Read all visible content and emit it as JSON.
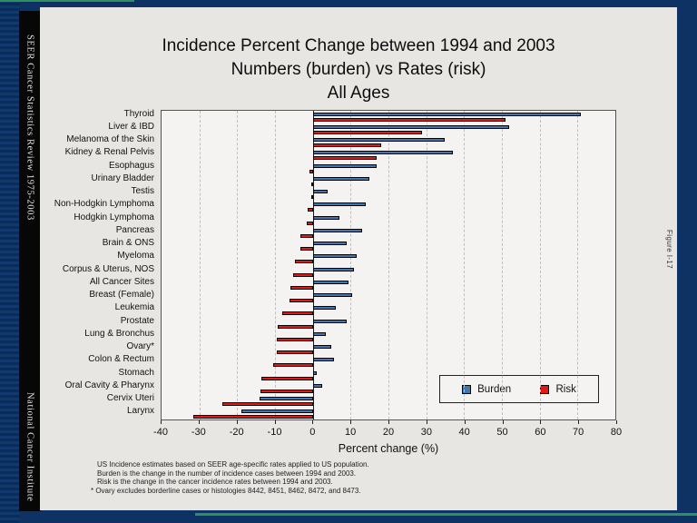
{
  "sidebar": {
    "top_text": "SEER Cancer Statistics Review 1975-2003",
    "bottom_text": "National Cancer Institute"
  },
  "figure_label": "Figure I-17",
  "title": {
    "line1": "Incidence Percent Change between 1994 and 2003",
    "line2": "Numbers (burden) vs Rates (risk)",
    "line3": "All Ages"
  },
  "chart_data": {
    "type": "bar",
    "orientation": "horizontal",
    "title": "Incidence Percent Change between 1994 and 2003 - Numbers (burden) vs Rates (risk) - All Ages",
    "categories": [
      "Thyroid",
      "Liver & IBD",
      "Melanoma of the Skin",
      "Kidney & Renal Pelvis",
      "Esophagus",
      "Urinary Bladder",
      "Testis",
      "Non-Hodgkin Lymphoma",
      "Hodgkin Lymphoma",
      "Pancreas",
      "Brain & ONS",
      "Myeloma",
      "Corpus & Uterus, NOS",
      "All Cancer Sites",
      "Breast (Female)",
      "Leukemia",
      "Prostate",
      "Lung & Bronchus",
      "Ovary*",
      "Colon & Rectum",
      "Stomach",
      "Oral Cavity & Pharynx",
      "Cervix Uteri",
      "Larynx"
    ],
    "series": [
      {
        "name": "Burden",
        "color": "#3f77ae",
        "values": [
          71,
          52,
          35,
          37,
          17,
          15,
          4,
          14,
          7,
          13,
          9,
          11.5,
          11,
          9.5,
          10.5,
          6,
          9,
          3.5,
          5,
          5.5,
          1,
          2.5,
          -14,
          -19
        ]
      },
      {
        "name": "Risk",
        "color": "#e21818",
        "values": [
          51,
          29,
          18,
          17,
          -1,
          -0.5,
          -0.5,
          -1.3,
          -1.7,
          -3.3,
          -3.4,
          -4.7,
          -5.3,
          -6,
          -6.1,
          -8,
          -9.3,
          -9.5,
          -9.6,
          -10.5,
          -13.7,
          -13.9,
          -24,
          -31.5
        ]
      }
    ],
    "xlabel": "Percent change (%)",
    "xlim": [
      -40,
      80
    ],
    "xticks": [
      -40,
      -30,
      -20,
      -10,
      0,
      10,
      20,
      30,
      40,
      50,
      60,
      70,
      80
    ],
    "grid": "vertical-dashed",
    "legend_position": "inside-bottom-right"
  },
  "footnotes": [
    "US Incidence estimates based on SEER age-specific rates applied to US population.",
    "Burden is the change in the number of incidence cases between 1994 and 2003.",
    "Risk is the change in the cancer incidence rates between 1994 and 2003.",
    "* Ovary excludes borderline cases or histologies 8442, 8451, 8462, 8472, and 8473."
  ]
}
